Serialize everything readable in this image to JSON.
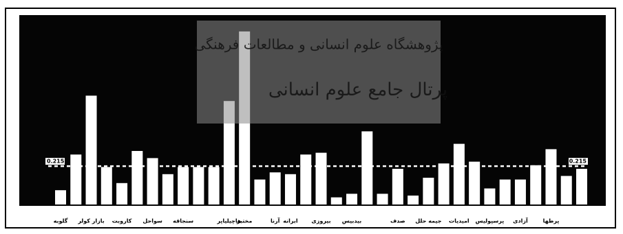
{
  "chart_data": {
    "type": "bar",
    "categories": [
      "گلوبه",
      null,
      "بازار کولر",
      null,
      "کاروبت",
      null,
      "سواحل",
      null,
      "سنجاقه",
      null,
      null,
      "هاچیلیاپر",
      "مختبر",
      null,
      "آرنا",
      "ابرانه",
      null,
      "بیروزی",
      null,
      "بیدبیس",
      null,
      null,
      "صدف",
      null,
      "جیمه حلل",
      null,
      "امیدیات",
      null,
      "پرسپولیس",
      null,
      "آزادی",
      null,
      "پرطها",
      null,
      null
    ],
    "values": [
      0.08,
      0.28,
      0.61,
      0.21,
      0.12,
      0.3,
      0.26,
      0.17,
      0.21,
      0.21,
      0.21,
      0.58,
      0.97,
      0.14,
      0.18,
      0.17,
      0.28,
      0.29,
      0.04,
      0.06,
      0.41,
      0.06,
      0.2,
      0.05,
      0.15,
      0.23,
      0.34,
      0.24,
      0.09,
      0.14,
      0.14,
      0.22,
      0.31,
      0.16,
      0.2
    ],
    "color": "#ffffff",
    "ylim": [
      0,
      1
    ],
    "reference_line": 0.215,
    "annotations": [
      "پژوهشگاه علوم انسانی و مطالعات فرهنگی",
      "پرتال جامع علوم انسانی"
    ]
  }
}
